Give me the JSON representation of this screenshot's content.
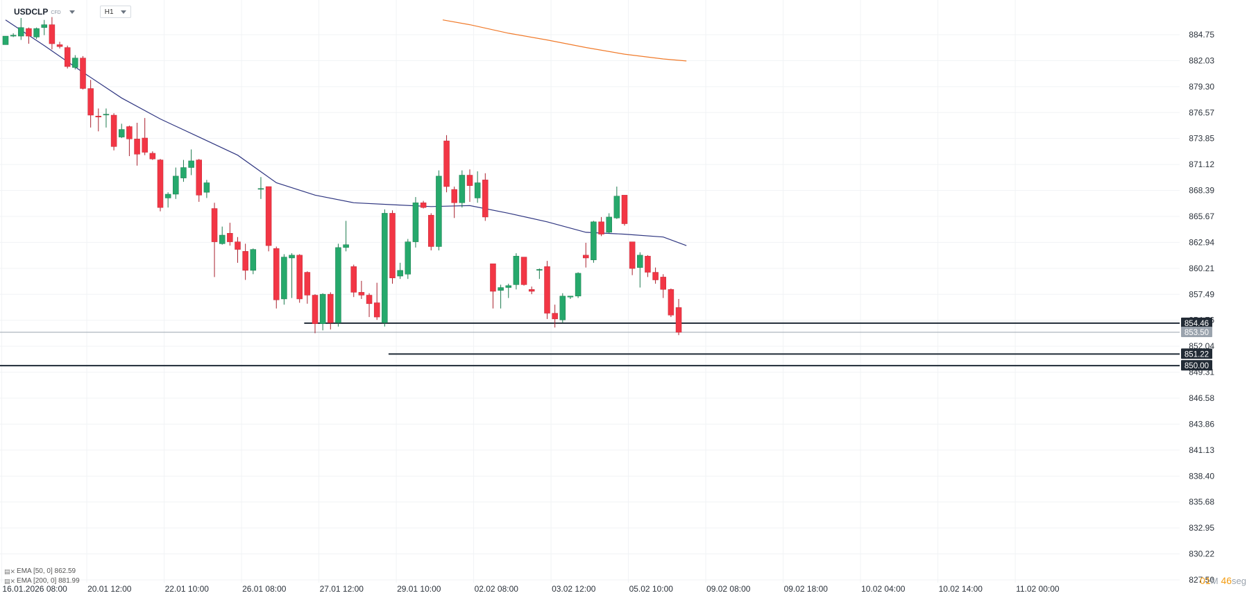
{
  "header": {
    "symbol": "USDCLP",
    "symbol_type": "CFD",
    "timeframe": "H1"
  },
  "indicators": [
    {
      "label": "EMA [50, 0] 862.59",
      "color": "#2e3580"
    },
    {
      "label": "EMA [200, 0] 881.99",
      "color": "#f07a2a"
    }
  ],
  "timer": {
    "minutes": "01",
    "minutes_unit": "M",
    "seconds": "46",
    "seconds_unit": "seg"
  },
  "chart_data": {
    "type": "candlestick",
    "colors": {
      "up": "#26a96c",
      "down": "#f23645",
      "ema50": "#2e3580",
      "ema200": "#f07a2a"
    },
    "ylim": [
      827.5,
      887.0
    ],
    "y_ticks": [
      "884.75",
      "882.03",
      "879.30",
      "876.57",
      "873.85",
      "871.12",
      "868.39",
      "865.67",
      "862.94",
      "860.21",
      "857.49",
      "854.76",
      "852.04",
      "849.31",
      "846.58",
      "843.86",
      "841.13",
      "838.40",
      "835.68",
      "832.95",
      "830.22",
      "827.50"
    ],
    "x_labels": [
      "16.01.2026 08:00",
      "20.01 12:00",
      "22.01 10:00",
      "26.01 08:00",
      "27.01 12:00",
      "29.01 10:00",
      "02.02 08:00",
      "03.02 12:00",
      "05.02 10:00",
      "09.02 08:00",
      "09.02 18:00",
      "10.02 04:00",
      "10.02 14:00",
      "11.02 00:00"
    ],
    "candles": [
      [
        883.7,
        884.6,
        883.7,
        884.6
      ],
      [
        884.6,
        884.9,
        884.5,
        884.7
      ],
      [
        884.6,
        886.5,
        884.2,
        885.5
      ],
      [
        885.4,
        885.5,
        883.8,
        884.6
      ],
      [
        884.5,
        885.5,
        884.3,
        885.4
      ],
      [
        885.5,
        886.3,
        884.7,
        885.8
      ],
      [
        885.8,
        886.6,
        883.2,
        883.8
      ],
      [
        883.7,
        884.0,
        883.3,
        883.5
      ],
      [
        883.4,
        883.6,
        881.2,
        881.4
      ],
      [
        881.3,
        882.6,
        881.1,
        882.3
      ],
      [
        882.3,
        882.5,
        879.0,
        879.1
      ],
      [
        879.1,
        880.0,
        875.0,
        876.3
      ],
      [
        876.2,
        877.0,
        874.6,
        876.1
      ],
      [
        876.4,
        877.0,
        875.0,
        876.4
      ],
      [
        876.3,
        876.5,
        872.6,
        873.0
      ],
      [
        874.0,
        875.4,
        873.9,
        874.8
      ],
      [
        875.1,
        875.2,
        872.0,
        873.8
      ],
      [
        873.8,
        875.5,
        871.0,
        872.2
      ],
      [
        873.9,
        876.0,
        872.1,
        872.4
      ],
      [
        872.3,
        872.5,
        871.6,
        871.7
      ],
      [
        871.6,
        871.7,
        866.2,
        866.6
      ],
      [
        867.6,
        868.2,
        866.6,
        868.0
      ],
      [
        868.0,
        870.8,
        867.5,
        869.9
      ],
      [
        869.7,
        871.6,
        869.3,
        870.8
      ],
      [
        870.8,
        872.7,
        870.0,
        871.5
      ],
      [
        871.6,
        871.7,
        867.2,
        867.9
      ],
      [
        868.2,
        869.5,
        867.6,
        869.2
      ],
      [
        866.5,
        867.1,
        859.3,
        863.0
      ],
      [
        862.8,
        864.6,
        862.7,
        863.7
      ],
      [
        863.9,
        865.0,
        862.6,
        863.0
      ],
      [
        863.0,
        863.5,
        860.8,
        862.2
      ],
      [
        862.0,
        862.8,
        859.0,
        860.0
      ],
      [
        860.0,
        862.3,
        859.6,
        862.2
      ],
      [
        868.6,
        869.8,
        867.5,
        868.6
      ],
      [
        868.8,
        868.8,
        862.0,
        862.6
      ],
      [
        862.3,
        862.5,
        856.0,
        856.9
      ],
      [
        857.0,
        861.7,
        856.4,
        861.4
      ],
      [
        861.3,
        861.8,
        857.1,
        861.6
      ],
      [
        861.6,
        861.7,
        856.6,
        857.0
      ],
      [
        859.8,
        859.9,
        856.5,
        857.4
      ],
      [
        857.4,
        857.5,
        853.4,
        854.4
      ],
      [
        854.4,
        857.6,
        853.7,
        857.5
      ],
      [
        857.5,
        857.7,
        853.8,
        854.5
      ],
      [
        854.5,
        862.8,
        854.1,
        862.4
      ],
      [
        862.4,
        865.2,
        862.0,
        862.7
      ],
      [
        860.4,
        860.6,
        857.2,
        857.7
      ],
      [
        857.7,
        858.9,
        857.0,
        857.4
      ],
      [
        857.4,
        857.6,
        855.1,
        856.5
      ],
      [
        856.6,
        858.7,
        854.8,
        855.1
      ],
      [
        854.5,
        866.4,
        854.1,
        866.0
      ],
      [
        866.0,
        866.3,
        858.6,
        859.2
      ],
      [
        859.4,
        860.8,
        859.1,
        860.0
      ],
      [
        859.6,
        863.3,
        859.1,
        863.0
      ],
      [
        863.0,
        867.7,
        862.4,
        867.1
      ],
      [
        867.1,
        867.3,
        866.5,
        866.6
      ],
      [
        865.8,
        866.0,
        862.1,
        862.5
      ],
      [
        862.5,
        870.5,
        862.1,
        869.9
      ],
      [
        873.6,
        874.2,
        868.2,
        868.8
      ],
      [
        868.5,
        868.8,
        865.5,
        867.1
      ],
      [
        867.1,
        870.5,
        866.6,
        870.0
      ],
      [
        870.0,
        870.6,
        867.2,
        868.9
      ],
      [
        867.6,
        870.4,
        867.1,
        869.2
      ],
      [
        869.5,
        870.2,
        865.2,
        865.6
      ],
      [
        860.7,
        860.7,
        856.0,
        857.8
      ],
      [
        857.9,
        858.5,
        856.0,
        858.2
      ],
      [
        858.2,
        858.6,
        857.1,
        858.4
      ],
      [
        858.5,
        861.8,
        858.0,
        861.5
      ],
      [
        861.4,
        861.4,
        858.4,
        858.5
      ],
      [
        858.0,
        858.3,
        857.5,
        857.8
      ],
      [
        860.1,
        860.2,
        859.1,
        860.1
      ],
      [
        860.4,
        861.0,
        854.9,
        855.5
      ],
      [
        855.5,
        856.4,
        854.0,
        854.9
      ],
      [
        854.8,
        857.6,
        854.5,
        857.3
      ],
      [
        857.2,
        857.3,
        857.0,
        857.3
      ],
      [
        857.3,
        859.8,
        857.1,
        859.7
      ],
      [
        861.6,
        862.9,
        860.3,
        861.3
      ],
      [
        861.1,
        865.2,
        860.8,
        865.1
      ],
      [
        865.1,
        865.6,
        863.6,
        863.8
      ],
      [
        864.0,
        866.0,
        863.9,
        865.6
      ],
      [
        865.5,
        868.8,
        865.4,
        867.8
      ],
      [
        867.9,
        867.9,
        864.7,
        864.9
      ],
      [
        863.0,
        863.0,
        859.5,
        860.2
      ],
      [
        860.3,
        861.9,
        858.2,
        861.6
      ],
      [
        861.5,
        861.6,
        859.3,
        859.8
      ],
      [
        859.8,
        860.3,
        858.6,
        859.0
      ],
      [
        859.3,
        859.6,
        857.1,
        858.0
      ],
      [
        858.0,
        858.1,
        855.1,
        855.3
      ],
      [
        856.1,
        857.0,
        853.2,
        853.5
      ]
    ],
    "ema50": [
      [
        0.0,
        886.3
      ],
      [
        5.0,
        883.6
      ],
      [
        10.0,
        880.8
      ],
      [
        15.0,
        878.1
      ],
      [
        20.0,
        875.9
      ],
      [
        25.0,
        874.0
      ],
      [
        30.0,
        872.1
      ],
      [
        35.0,
        869.2
      ],
      [
        40.0,
        867.9
      ],
      [
        45.0,
        867.1
      ],
      [
        50.0,
        866.9
      ],
      [
        55.0,
        866.7
      ],
      [
        60.0,
        866.8
      ],
      [
        65.0,
        866.0
      ],
      [
        70.0,
        865.1
      ],
      [
        75.0,
        864.0
      ],
      [
        80.0,
        863.8
      ],
      [
        85.0,
        863.5
      ],
      [
        88.0,
        862.6
      ]
    ],
    "ema200": [
      [
        56.5,
        886.3
      ],
      [
        60.0,
        885.8
      ],
      [
        65.0,
        884.9
      ],
      [
        70.0,
        884.2
      ],
      [
        75.0,
        883.4
      ],
      [
        80.0,
        882.7
      ],
      [
        85.0,
        882.2
      ],
      [
        88.0,
        881.99
      ]
    ],
    "levels": [
      {
        "value": 854.46,
        "label": "854.46",
        "from": 38.6,
        "kind": "line"
      },
      {
        "value": 853.5,
        "label": "853.50",
        "from": -1.0,
        "kind": "price"
      },
      {
        "value": 851.22,
        "label": "851.22",
        "from": 49.5,
        "kind": "line"
      },
      {
        "value": 850.0,
        "label": "850.00",
        "from": -1.0,
        "kind": "line"
      }
    ],
    "x_label_index": [
      -0.5,
      10.5,
      20.5,
      30.5,
      40.5,
      50.5,
      60.5,
      70.5,
      80.5,
      90.5,
      100.5,
      110.5,
      120.5,
      130.5
    ]
  }
}
